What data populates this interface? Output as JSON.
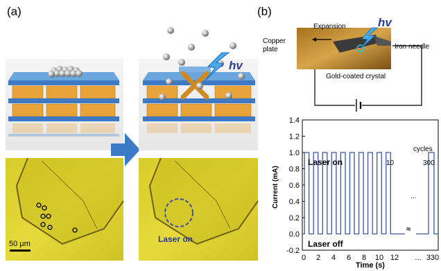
{
  "panel_a": {
    "letter": "(a)",
    "hv_label": "hv",
    "scale_bar_label": "50 μm",
    "laser_on_label": "Laser on"
  },
  "panel_b": {
    "letter": "(b)",
    "expansion_label": "Expansion",
    "copper_plate_label": "Copper\nplate",
    "hv_label": "hv",
    "iron_needle_label": "Iron needle",
    "gold_crystal_label": "Gold-coated crystal"
  },
  "chart_data": {
    "type": "line",
    "xlabel": "Time (s)",
    "ylabel": "Current (mA)",
    "ylim": [
      -0.2,
      1.4
    ],
    "yticks": [
      "1.4",
      "1.2",
      "1.0",
      "0.8",
      "0.6",
      "0.4",
      "0.2",
      "0.0",
      "-0.2"
    ],
    "xticks": [
      "0",
      "2",
      "4",
      "6",
      "8",
      "10",
      "12",
      "...",
      "330"
    ],
    "annotations": {
      "laser_on": "Laser on",
      "laser_off": "Laser off",
      "cycles": "cycles",
      "cycle_10": "10",
      "cycle_300": "300",
      "ellipsis": "...",
      "break_mark": "≈"
    },
    "series": [
      {
        "period_s": 1.2,
        "duty_on_s": 0.6,
        "on_value": 1.0,
        "off_value": 0.0,
        "cycles_visible": 10,
        "final_pulse": 1.0
      }
    ]
  }
}
